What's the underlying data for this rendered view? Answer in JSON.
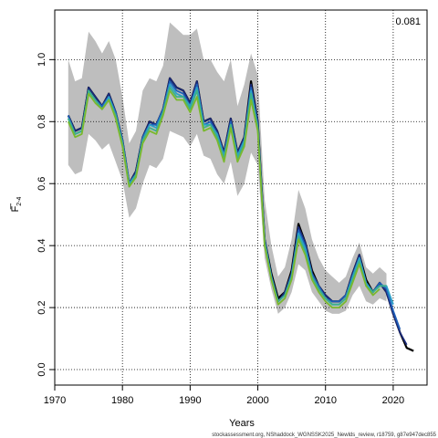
{
  "chart_data": {
    "type": "line",
    "title": "",
    "xlabel": "Years",
    "ylabel": "F",
    "ylabel_bar": "_",
    "ylabel_sub": "2-4",
    "xlim": [
      1970,
      2025
    ],
    "ylim": [
      -0.05,
      1.16
    ],
    "x_ticks": [
      1970,
      1980,
      1990,
      2000,
      2010,
      2020
    ],
    "x_tick_labels": [
      "1970",
      "1980",
      "1990",
      "2000",
      "2010",
      "2020"
    ],
    "y_ticks": [
      0.0,
      0.2,
      0.4,
      0.6,
      0.8,
      1.0
    ],
    "y_tick_labels": [
      "0.0",
      "0.2",
      "0.4",
      "0.6",
      "0.8",
      "1.0"
    ],
    "grid": true,
    "corner_label": "0.081",
    "footer": "stockassessment.org, NShaddock_WGNSSK2025_Newlds_review, r18759, g87e947dec855",
    "band": {
      "color": "#bebebe",
      "x": [
        1972,
        1973,
        1974,
        1975,
        1976,
        1977,
        1978,
        1979,
        1980,
        1981,
        1982,
        1983,
        1984,
        1985,
        1986,
        1987,
        1988,
        1989,
        1990,
        1991,
        1992,
        1993,
        1994,
        1995,
        1996,
        1997,
        1998,
        1999,
        2000,
        2001,
        2002,
        2003,
        2004,
        2005,
        2006,
        2007,
        2008,
        2009,
        2010,
        2011,
        2012,
        2013,
        2014,
        2015,
        2016,
        2017,
        2018,
        2019
      ],
      "upper": [
        1.0,
        0.93,
        0.94,
        1.09,
        1.06,
        1.02,
        1.06,
        1.0,
        0.88,
        0.73,
        0.77,
        0.9,
        0.94,
        0.93,
        0.98,
        1.12,
        1.1,
        1.08,
        1.08,
        1.1,
        1.0,
        1.0,
        0.96,
        0.93,
        1.0,
        0.85,
        0.92,
        1.02,
        0.95,
        0.55,
        0.4,
        0.3,
        0.33,
        0.42,
        0.58,
        0.52,
        0.42,
        0.36,
        0.32,
        0.3,
        0.28,
        0.3,
        0.36,
        0.41,
        0.33,
        0.31,
        0.33,
        0.31
      ],
      "lower": [
        0.66,
        0.63,
        0.64,
        0.76,
        0.74,
        0.71,
        0.73,
        0.67,
        0.61,
        0.49,
        0.52,
        0.6,
        0.66,
        0.65,
        0.68,
        0.77,
        0.76,
        0.75,
        0.72,
        0.76,
        0.69,
        0.68,
        0.63,
        0.6,
        0.67,
        0.56,
        0.6,
        0.7,
        0.66,
        0.36,
        0.26,
        0.18,
        0.2,
        0.25,
        0.34,
        0.32,
        0.25,
        0.22,
        0.19,
        0.18,
        0.18,
        0.19,
        0.24,
        0.27,
        0.22,
        0.21,
        0.23,
        0.22
      ]
    },
    "series": [
      {
        "color": "#000000",
        "x": [
          1972,
          1973,
          1974,
          1975,
          1976,
          1977,
          1978,
          1979,
          1980,
          1981,
          1982,
          1983,
          1984,
          1985,
          1986,
          1987,
          1988,
          1989,
          1990,
          1991,
          1992,
          1993,
          1994,
          1995,
          1996,
          1997,
          1998,
          1999,
          2000,
          2001,
          2002,
          2003,
          2004,
          2005,
          2006,
          2007,
          2008,
          2009,
          2010,
          2011,
          2012,
          2013,
          2014,
          2015,
          2016,
          2017,
          2018,
          2019,
          2020,
          2021,
          2022,
          2023
        ],
        "values": [
          0.82,
          0.77,
          0.78,
          0.91,
          0.88,
          0.85,
          0.89,
          0.83,
          0.74,
          0.6,
          0.64,
          0.75,
          0.8,
          0.79,
          0.84,
          0.94,
          0.91,
          0.9,
          0.86,
          0.93,
          0.8,
          0.81,
          0.77,
          0.7,
          0.81,
          0.7,
          0.75,
          0.93,
          0.8,
          0.42,
          0.31,
          0.23,
          0.25,
          0.32,
          0.47,
          0.41,
          0.32,
          0.27,
          0.24,
          0.22,
          0.22,
          0.24,
          0.31,
          0.37,
          0.29,
          0.25,
          0.28,
          0.25,
          0.18,
          0.12,
          0.07,
          0.06
        ]
      },
      {
        "color": "#1b2a7a",
        "x": [
          1972,
          1973,
          1974,
          1975,
          1976,
          1977,
          1978,
          1979,
          1980,
          1981,
          1982,
          1983,
          1984,
          1985,
          1986,
          1987,
          1988,
          1989,
          1990,
          1991,
          1992,
          1993,
          1994,
          1995,
          1996,
          1997,
          1998,
          1999,
          2000,
          2001,
          2002,
          2003,
          2004,
          2005,
          2006,
          2007,
          2008,
          2009,
          2010,
          2011,
          2012,
          2013,
          2014,
          2015,
          2016,
          2017,
          2018,
          2019,
          2020,
          2021,
          2022
        ],
        "values": [
          0.82,
          0.77,
          0.78,
          0.91,
          0.88,
          0.85,
          0.89,
          0.83,
          0.74,
          0.6,
          0.64,
          0.75,
          0.8,
          0.79,
          0.84,
          0.94,
          0.91,
          0.9,
          0.86,
          0.93,
          0.8,
          0.81,
          0.77,
          0.7,
          0.81,
          0.7,
          0.75,
          0.92,
          0.8,
          0.42,
          0.3,
          0.22,
          0.25,
          0.31,
          0.46,
          0.41,
          0.31,
          0.27,
          0.24,
          0.22,
          0.22,
          0.24,
          0.31,
          0.37,
          0.28,
          0.25,
          0.28,
          0.25,
          0.18,
          0.12,
          0.08
        ]
      },
      {
        "color": "#1f5fb8",
        "x": [
          1972,
          1973,
          1974,
          1975,
          1976,
          1977,
          1978,
          1979,
          1980,
          1981,
          1982,
          1983,
          1984,
          1985,
          1986,
          1987,
          1988,
          1989,
          1990,
          1991,
          1992,
          1993,
          1994,
          1995,
          1996,
          1997,
          1998,
          1999,
          2000,
          2001,
          2002,
          2003,
          2004,
          2005,
          2006,
          2007,
          2008,
          2009,
          2010,
          2011,
          2012,
          2013,
          2014,
          2015,
          2016,
          2017,
          2018,
          2019,
          2020,
          2021
        ],
        "values": [
          0.82,
          0.76,
          0.77,
          0.9,
          0.87,
          0.85,
          0.88,
          0.83,
          0.74,
          0.6,
          0.63,
          0.75,
          0.79,
          0.79,
          0.84,
          0.93,
          0.9,
          0.89,
          0.85,
          0.92,
          0.79,
          0.8,
          0.76,
          0.69,
          0.8,
          0.69,
          0.74,
          0.91,
          0.79,
          0.42,
          0.3,
          0.22,
          0.24,
          0.31,
          0.45,
          0.4,
          0.31,
          0.27,
          0.23,
          0.22,
          0.22,
          0.24,
          0.3,
          0.36,
          0.28,
          0.25,
          0.28,
          0.26,
          0.19,
          0.13
        ]
      },
      {
        "color": "#2aa0c8",
        "x": [
          1972,
          1973,
          1974,
          1975,
          1976,
          1977,
          1978,
          1979,
          1980,
          1981,
          1982,
          1983,
          1984,
          1985,
          1986,
          1987,
          1988,
          1989,
          1990,
          1991,
          1992,
          1993,
          1994,
          1995,
          1996,
          1997,
          1998,
          1999,
          2000,
          2001,
          2002,
          2003,
          2004,
          2005,
          2006,
          2007,
          2008,
          2009,
          2010,
          2011,
          2012,
          2013,
          2014,
          2015,
          2016,
          2017,
          2018,
          2019,
          2020
        ],
        "values": [
          0.81,
          0.76,
          0.77,
          0.9,
          0.87,
          0.84,
          0.88,
          0.82,
          0.73,
          0.6,
          0.63,
          0.74,
          0.79,
          0.78,
          0.83,
          0.92,
          0.89,
          0.88,
          0.85,
          0.91,
          0.79,
          0.79,
          0.76,
          0.69,
          0.79,
          0.69,
          0.74,
          0.9,
          0.78,
          0.41,
          0.3,
          0.22,
          0.24,
          0.3,
          0.44,
          0.39,
          0.3,
          0.26,
          0.23,
          0.21,
          0.21,
          0.23,
          0.3,
          0.36,
          0.28,
          0.25,
          0.27,
          0.27,
          0.21
        ]
      },
      {
        "color": "#3cb08c",
        "x": [
          1972,
          1973,
          1974,
          1975,
          1976,
          1977,
          1978,
          1979,
          1980,
          1981,
          1982,
          1983,
          1984,
          1985,
          1986,
          1987,
          1988,
          1989,
          1990,
          1991,
          1992,
          1993,
          1994,
          1995,
          1996,
          1997,
          1998,
          1999,
          2000,
          2001,
          2002,
          2003,
          2004,
          2005,
          2006,
          2007,
          2008,
          2009,
          2010,
          2011,
          2012,
          2013,
          2014,
          2015,
          2016,
          2017,
          2018,
          2019
        ],
        "values": [
          0.81,
          0.76,
          0.77,
          0.9,
          0.87,
          0.84,
          0.87,
          0.82,
          0.73,
          0.59,
          0.63,
          0.74,
          0.78,
          0.77,
          0.83,
          0.91,
          0.88,
          0.88,
          0.84,
          0.9,
          0.78,
          0.79,
          0.75,
          0.68,
          0.79,
          0.68,
          0.73,
          0.89,
          0.78,
          0.41,
          0.29,
          0.22,
          0.24,
          0.3,
          0.43,
          0.38,
          0.3,
          0.26,
          0.23,
          0.21,
          0.21,
          0.23,
          0.29,
          0.35,
          0.27,
          0.25,
          0.27,
          0.27
        ]
      },
      {
        "color": "#7ab82e",
        "x": [
          1972,
          1973,
          1974,
          1975,
          1976,
          1977,
          1978,
          1979,
          1980,
          1981,
          1982,
          1983,
          1984,
          1985,
          1986,
          1987,
          1988,
          1989,
          1990,
          1991,
          1992,
          1993,
          1994,
          1995,
          1996,
          1997,
          1998,
          1999,
          2000,
          2001,
          2002,
          2003,
          2004,
          2005,
          2006,
          2007,
          2008,
          2009,
          2010,
          2011,
          2012,
          2013,
          2014,
          2015,
          2016,
          2017,
          2018
        ],
        "values": [
          0.8,
          0.75,
          0.76,
          0.89,
          0.86,
          0.84,
          0.87,
          0.81,
          0.72,
          0.59,
          0.62,
          0.73,
          0.77,
          0.76,
          0.82,
          0.9,
          0.87,
          0.87,
          0.83,
          0.88,
          0.77,
          0.78,
          0.74,
          0.67,
          0.78,
          0.67,
          0.72,
          0.87,
          0.77,
          0.4,
          0.29,
          0.21,
          0.23,
          0.29,
          0.42,
          0.37,
          0.29,
          0.25,
          0.22,
          0.2,
          0.2,
          0.22,
          0.28,
          0.34,
          0.27,
          0.24,
          0.26
        ]
      }
    ]
  }
}
